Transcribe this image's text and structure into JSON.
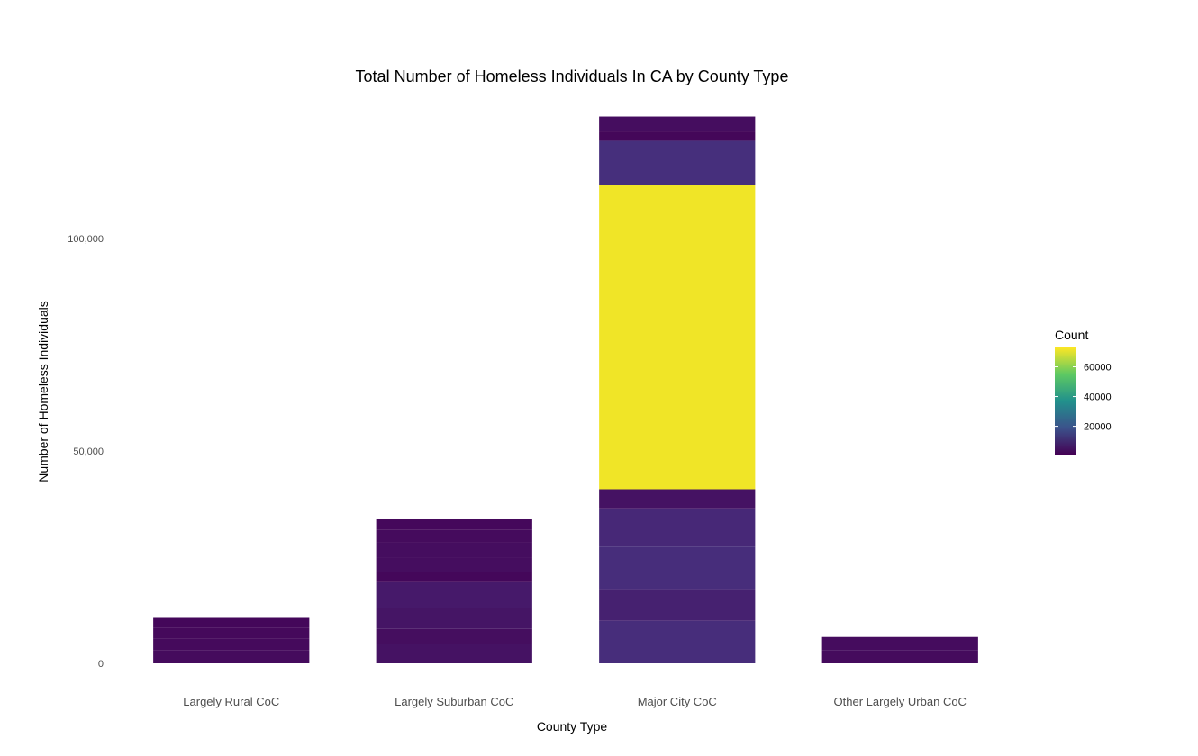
{
  "chart_data": {
    "type": "bar",
    "stacked": true,
    "title": "Total Number of Homeless Individuals In CA by County Type",
    "xlabel": "County Type",
    "ylabel": "Number of Homeless Individuals",
    "ylim": [
      0,
      130000
    ],
    "y_ticks": [
      0,
      50000,
      100000
    ],
    "y_tick_labels": [
      "0",
      "50,000",
      "100,000"
    ],
    "grid": false,
    "fill_scale": "viridis",
    "categories": [
      "Largely Rural CoC",
      "Largely Suburban CoC",
      "Major City CoC",
      "Other Largely Urban CoC"
    ],
    "stacks": [
      {
        "category": "Largely Rural CoC",
        "segments": [
          3000,
          2800,
          2600,
          2300
        ]
      },
      {
        "category": "Largely Suburban CoC",
        "segments": [
          4500,
          3600,
          5000,
          6000,
          2300,
          3500,
          3500,
          3000,
          2500
        ]
      },
      {
        "category": "Major City CoC",
        "segments": [
          10000,
          7500,
          10000,
          9000,
          4500,
          71500,
          10500,
          2200,
          3500
        ]
      },
      {
        "category": "Other Largely Urban CoC",
        "segments": [
          3000,
          3200
        ]
      }
    ],
    "legend": {
      "title": "Count",
      "position": "right",
      "min": 1000,
      "max": 73000,
      "ticks": [
        20000,
        40000,
        60000
      ],
      "tick_labels": [
        "20000",
        "40000",
        "60000"
      ]
    }
  }
}
